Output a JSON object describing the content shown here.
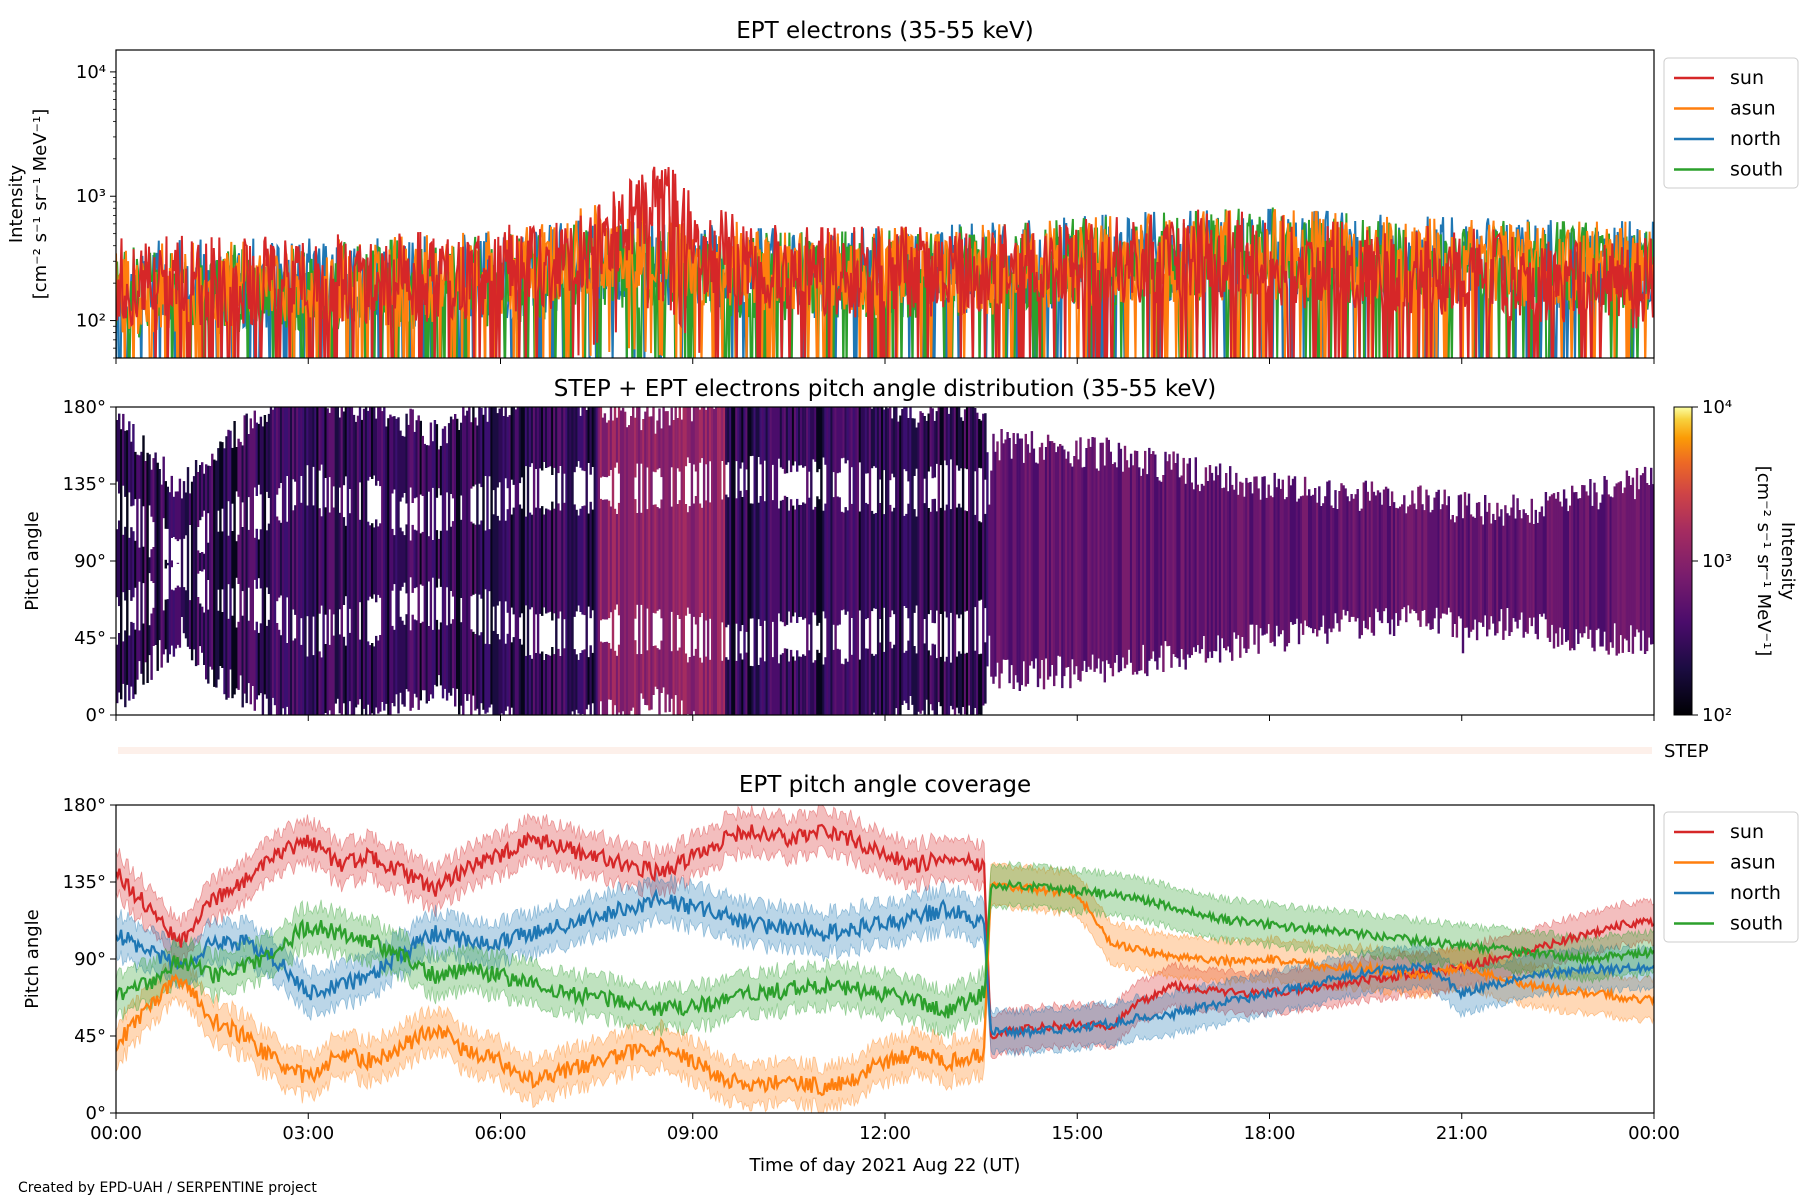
{
  "footer": "Created by EPD-UAH / SERPENTINE project",
  "colors": {
    "sun": "#d62728",
    "asun": "#ff7f0e",
    "north": "#1f77b4",
    "south": "#2ca02c"
  },
  "chart_data": [
    {
      "type": "line",
      "title": "EPT electrons (35-55 keV)",
      "ylabel_line1": "Intensity",
      "ylabel_line2": "[cm⁻² s⁻¹ sr⁻¹ MeV⁻¹]",
      "yscale": "log",
      "ylim": [
        50,
        15000
      ],
      "yticks": [
        {
          "value": 100,
          "label": "10²"
        },
        {
          "value": 1000,
          "label": "10³"
        },
        {
          "value": 10000,
          "label": "10⁴"
        }
      ],
      "xlim_hours": [
        0,
        24
      ],
      "legend": "right-top",
      "series": [
        {
          "name": "sun",
          "color": "#d62728",
          "x_hours": [
            0,
            1,
            2,
            3,
            4,
            5,
            6,
            7,
            8,
            8.5,
            9,
            10,
            11,
            12,
            13,
            14,
            15,
            16,
            17,
            18,
            19,
            20,
            21,
            22,
            23,
            24
          ],
          "values": [
            190,
            200,
            190,
            210,
            200,
            220,
            240,
            280,
            600,
            1000,
            380,
            250,
            230,
            240,
            230,
            250,
            270,
            290,
            330,
            300,
            260,
            250,
            230,
            220,
            200,
            190
          ]
        },
        {
          "name": "asun",
          "color": "#ff7f0e",
          "x_hours": [
            0,
            2,
            4,
            6,
            8,
            9,
            10,
            12,
            14,
            16,
            18,
            20,
            22,
            24
          ],
          "values": [
            170,
            180,
            190,
            220,
            400,
            300,
            240,
            230,
            250,
            300,
            330,
            280,
            260,
            260
          ]
        },
        {
          "name": "north",
          "color": "#1f77b4",
          "x_hours": [
            0,
            2,
            4,
            6,
            8,
            9,
            10,
            12,
            14,
            16,
            18,
            20,
            22,
            24
          ],
          "values": [
            180,
            190,
            190,
            210,
            300,
            250,
            230,
            230,
            260,
            310,
            330,
            290,
            270,
            260
          ]
        },
        {
          "name": "south",
          "color": "#2ca02c",
          "x_hours": [
            0,
            2,
            4,
            6,
            8,
            9,
            10,
            12,
            14,
            16,
            18,
            20,
            22,
            24
          ],
          "values": [
            160,
            170,
            180,
            200,
            280,
            230,
            210,
            220,
            250,
            300,
            340,
            280,
            260,
            250
          ]
        }
      ]
    },
    {
      "type": "heatmap",
      "title": "STEP + EPT electrons pitch angle distribution (35-55 keV)",
      "ylabel": "Pitch angle",
      "ylim": [
        0,
        180
      ],
      "yticks": [
        {
          "value": 0,
          "label": "0°"
        },
        {
          "value": 45,
          "label": "45°"
        },
        {
          "value": 90,
          "label": "90°"
        },
        {
          "value": 135,
          "label": "135°"
        },
        {
          "value": 180,
          "label": "180°"
        }
      ],
      "xlim_hours": [
        0,
        24
      ],
      "colorbar": {
        "scale": "log",
        "range": [
          100,
          10000
        ],
        "colormap": "inferno",
        "label_line1": "Intensity",
        "label_line2": "[cm⁻² s⁻¹ sr⁻¹ MeV⁻¹]",
        "ticks": [
          {
            "value": 100,
            "label": "10²"
          },
          {
            "value": 1000,
            "label": "10³"
          },
          {
            "value": 10000,
            "label": "10⁴"
          }
        ]
      },
      "step_label": "STEP"
    },
    {
      "type": "line",
      "title": "EPT pitch angle coverage",
      "ylabel": "Pitch angle",
      "xlabel": "Time of day 2021 Aug 22 (UT)",
      "ylim": [
        0,
        180
      ],
      "yticks": [
        {
          "value": 0,
          "label": "0°"
        },
        {
          "value": 45,
          "label": "45°"
        },
        {
          "value": 90,
          "label": "90°"
        },
        {
          "value": 135,
          "label": "135°"
        },
        {
          "value": 180,
          "label": "180°"
        }
      ],
      "xlim_hours": [
        0,
        24
      ],
      "xticks": [
        {
          "value": 0,
          "label": "00:00"
        },
        {
          "value": 3,
          "label": "03:00"
        },
        {
          "value": 6,
          "label": "06:00"
        },
        {
          "value": 9,
          "label": "09:00"
        },
        {
          "value": 12,
          "label": "12:00"
        },
        {
          "value": 15,
          "label": "15:00"
        },
        {
          "value": 18,
          "label": "18:00"
        },
        {
          "value": 21,
          "label": "21:00"
        },
        {
          "value": 24,
          "label": "00:00"
        }
      ],
      "legend": "right-top",
      "series": [
        {
          "name": "sun",
          "color": "#d62728",
          "x_hours": [
            0,
            0.5,
            1,
            1.5,
            2,
            2.5,
            3,
            3.5,
            4,
            4.5,
            5,
            5.5,
            6,
            6.5,
            7,
            7.5,
            8,
            8.5,
            9,
            9.5,
            10,
            10.5,
            11,
            11.5,
            12,
            12.5,
            13,
            13.55,
            13.65,
            14,
            14.5,
            15,
            15.5,
            16,
            16.5,
            17,
            17.5,
            18,
            18.5,
            19,
            19.5,
            20,
            20.5,
            21,
            21.5,
            22,
            22.5,
            23,
            23.5,
            24
          ],
          "values": [
            140,
            120,
            100,
            125,
            135,
            150,
            160,
            145,
            150,
            140,
            130,
            145,
            150,
            160,
            155,
            150,
            145,
            140,
            150,
            160,
            165,
            160,
            165,
            160,
            150,
            145,
            150,
            145,
            45,
            48,
            50,
            52,
            50,
            65,
            75,
            72,
            70,
            70,
            72,
            75,
            78,
            80,
            82,
            85,
            90,
            95,
            100,
            105,
            110,
            112
          ]
        },
        {
          "name": "asun",
          "color": "#ff7f0e",
          "x_hours": [
            0,
            0.5,
            1,
            1.5,
            2,
            2.5,
            3,
            3.5,
            4,
            4.5,
            5,
            5.5,
            6,
            6.5,
            7,
            7.5,
            8,
            8.5,
            9,
            9.5,
            10,
            10.5,
            11,
            11.5,
            12,
            12.5,
            13,
            13.55,
            13.65,
            14,
            14.5,
            15,
            15.5,
            16,
            16.5,
            17,
            17.5,
            18,
            18.5,
            19,
            19.5,
            20,
            20.5,
            21,
            21.5,
            22,
            22.5,
            23,
            23.5,
            24
          ],
          "values": [
            40,
            60,
            80,
            55,
            45,
            30,
            20,
            35,
            30,
            40,
            50,
            35,
            30,
            20,
            25,
            30,
            35,
            40,
            30,
            20,
            15,
            20,
            15,
            20,
            30,
            35,
            30,
            35,
            135,
            132,
            130,
            128,
            100,
            95,
            92,
            90,
            88,
            90,
            88,
            85,
            85,
            82,
            80,
            85,
            80,
            75,
            72,
            70,
            68,
            66
          ]
        },
        {
          "name": "north",
          "color": "#1f77b4",
          "x_hours": [
            0,
            0.5,
            1,
            1.5,
            2,
            2.5,
            3,
            3.5,
            4,
            4.5,
            5,
            5.5,
            6,
            6.5,
            7,
            7.5,
            8,
            8.5,
            9,
            9.5,
            10,
            10.5,
            11,
            11.5,
            12,
            12.5,
            13,
            13.55,
            13.65,
            14,
            14.5,
            15,
            15.5,
            16,
            16.5,
            17,
            17.5,
            18,
            18.5,
            19,
            19.5,
            20,
            20.5,
            21,
            21.5,
            22,
            22.5,
            23,
            23.5,
            24
          ],
          "values": [
            105,
            95,
            85,
            100,
            100,
            90,
            70,
            75,
            80,
            95,
            105,
            100,
            100,
            105,
            110,
            115,
            120,
            125,
            120,
            115,
            110,
            108,
            105,
            108,
            110,
            115,
            120,
            110,
            48,
            47,
            48,
            50,
            52,
            56,
            58,
            62,
            66,
            70,
            74,
            78,
            82,
            84,
            86,
            70,
            75,
            80,
            82,
            84,
            84,
            85
          ]
        },
        {
          "name": "south",
          "color": "#2ca02c",
          "x_hours": [
            0,
            0.5,
            1,
            1.5,
            2,
            2.5,
            3,
            3.5,
            4,
            4.5,
            5,
            5.5,
            6,
            6.5,
            7,
            7.5,
            8,
            8.5,
            9,
            9.5,
            10,
            10.5,
            11,
            11.5,
            12,
            12.5,
            13,
            13.55,
            13.65,
            14,
            14.5,
            15,
            15.5,
            16,
            16.5,
            17,
            17.5,
            18,
            18.5,
            19,
            19.5,
            20,
            20.5,
            21,
            21.5,
            22,
            22.5,
            23,
            23.5,
            24
          ],
          "values": [
            70,
            75,
            90,
            80,
            85,
            95,
            110,
            105,
            100,
            90,
            80,
            85,
            80,
            75,
            70,
            68,
            65,
            60,
            62,
            65,
            70,
            72,
            75,
            72,
            70,
            65,
            60,
            70,
            132,
            133,
            132,
            130,
            128,
            125,
            120,
            115,
            112,
            110,
            108,
            106,
            104,
            102,
            100,
            98,
            96,
            94,
            92,
            90,
            92,
            94
          ]
        }
      ]
    }
  ]
}
